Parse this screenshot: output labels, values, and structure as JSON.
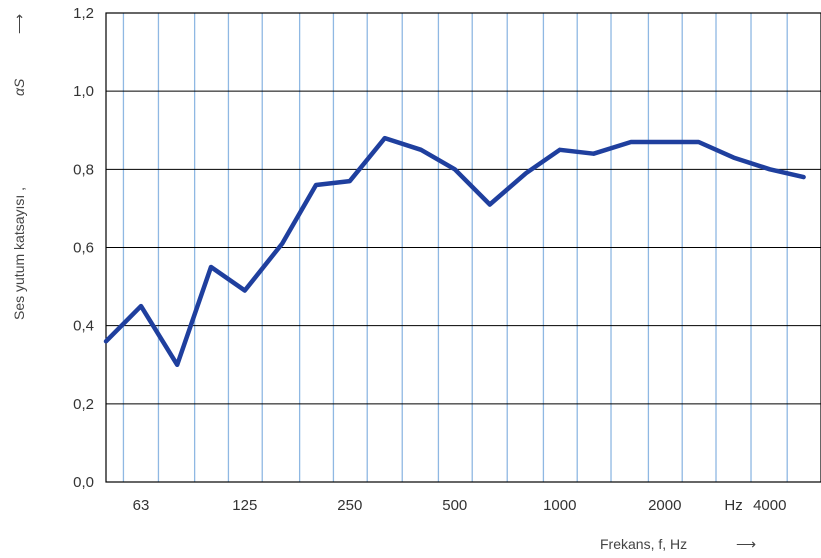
{
  "chart_data": {
    "type": "line",
    "title": "",
    "xlabel": "Frekans, f, Hz",
    "ylabel": "Ses yutum katsayısı ,",
    "ylabel_symbol": "αS",
    "arrow_glyph": "⟶",
    "x_scale": "log (third-octave bands)",
    "x_unit_tick": "Hz",
    "xticks": [
      "63",
      "125",
      "250",
      "500",
      "1000",
      "2000",
      "4000"
    ],
    "ylim": [
      0.0,
      1.2
    ],
    "yticks": [
      "0,0",
      "0,2",
      "0,4",
      "0,6",
      "0,8",
      "1,0",
      "1,2"
    ],
    "grid": true,
    "series": [
      {
        "x": [
          50,
          63,
          80,
          100,
          125,
          160,
          200,
          250,
          315,
          400,
          500,
          630,
          800,
          1000,
          1250,
          1600,
          2000,
          2500,
          3150,
          4000,
          5000
        ],
        "y": [
          0.36,
          0.45,
          0.3,
          0.55,
          0.49,
          0.61,
          0.76,
          0.77,
          0.88,
          0.85,
          0.8,
          0.71,
          0.79,
          0.85,
          0.84,
          0.87,
          0.87,
          0.87,
          0.83,
          0.8,
          0.78
        ]
      }
    ],
    "colors": {
      "line": "#1f3f9e",
      "vertical_grid": "#8fb8e3",
      "horizontal_grid": "#000000",
      "frame": "#000000"
    }
  }
}
